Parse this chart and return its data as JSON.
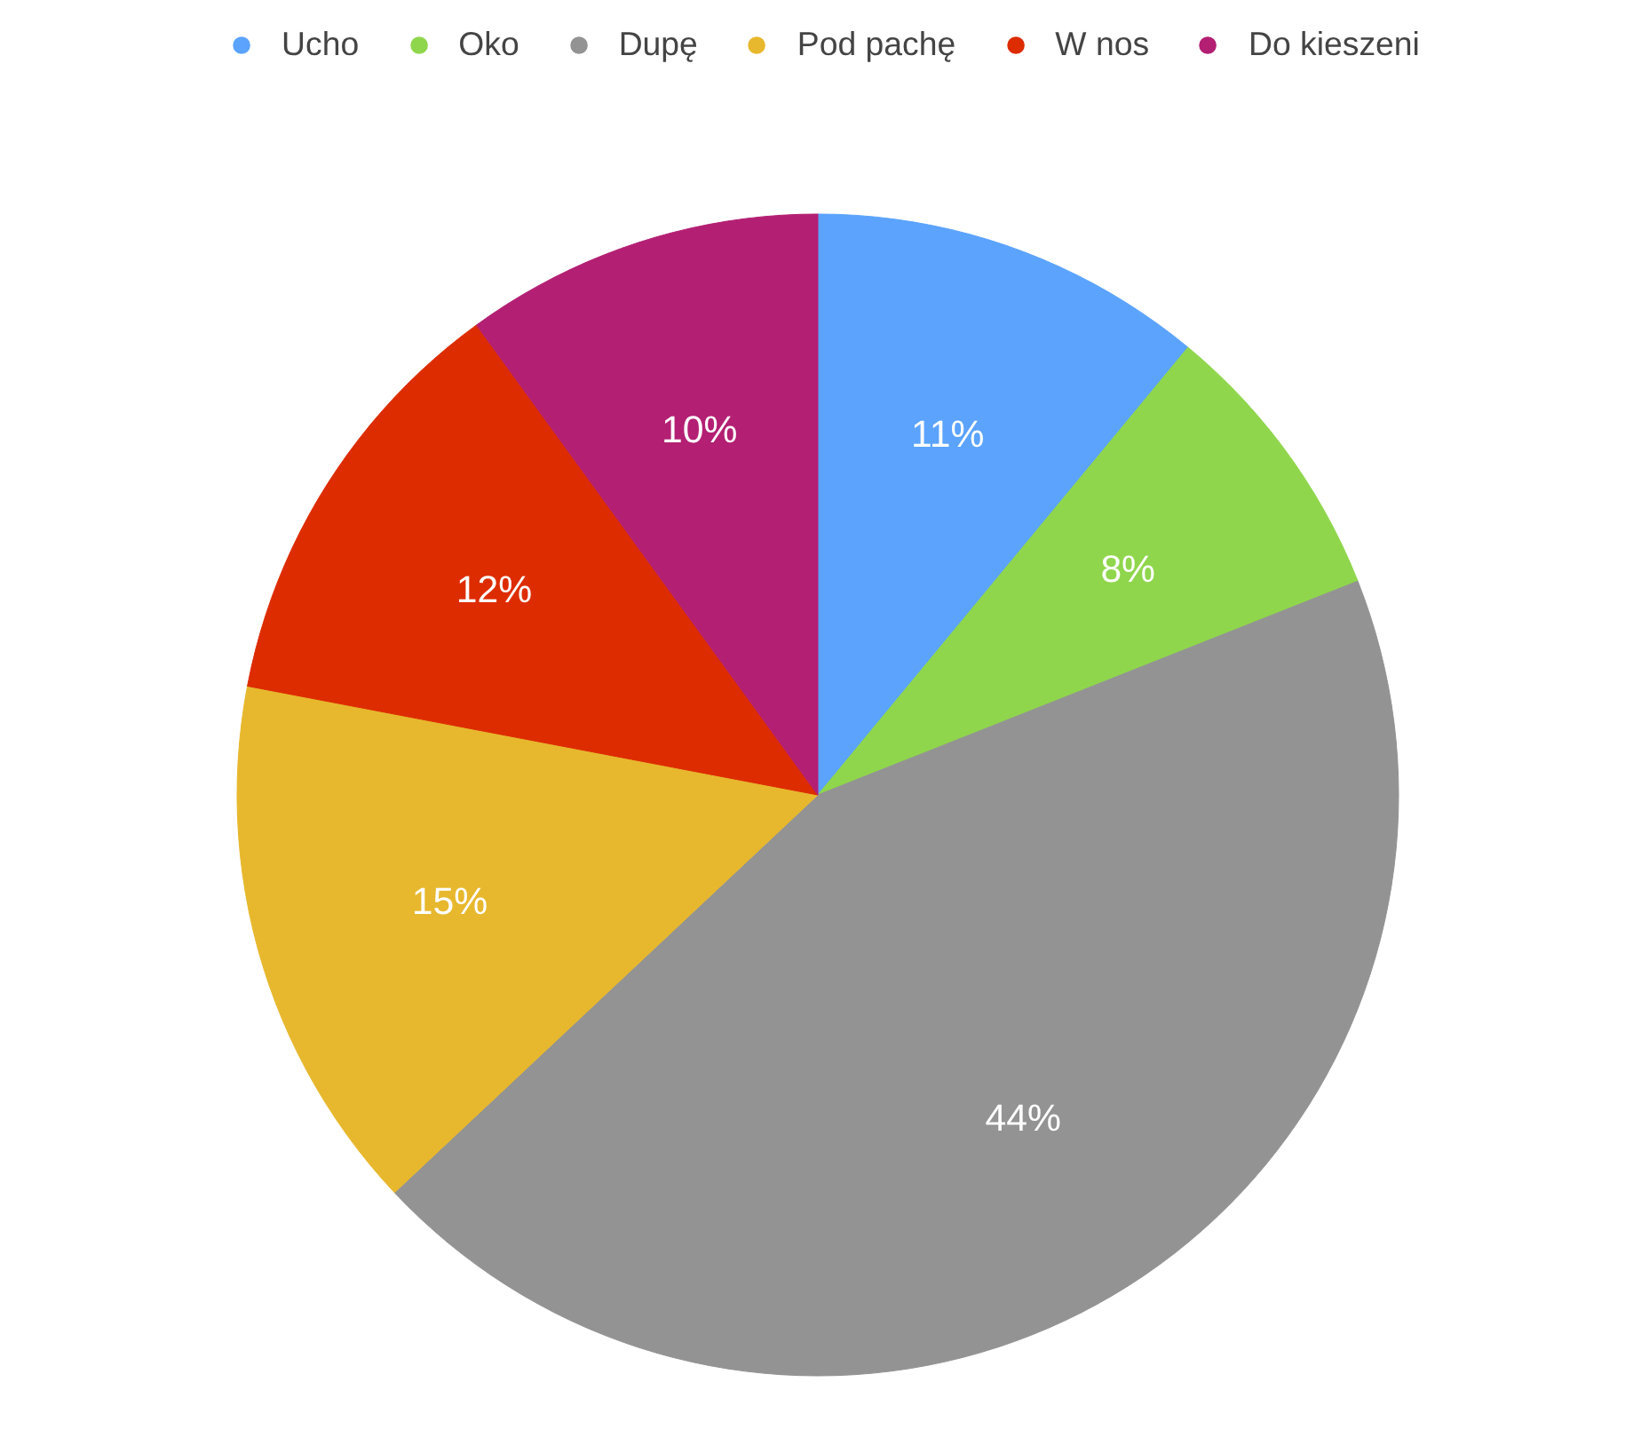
{
  "chart_data": {
    "type": "pie",
    "categories": [
      "Ucho",
      "Oko",
      "Dupę",
      "Pod pachę",
      "W nos",
      "Do kieszeni"
    ],
    "values": [
      11,
      8,
      44,
      15,
      12,
      10
    ],
    "colors": [
      "#5ba3fc",
      "#8fd64c",
      "#939393",
      "#e7b82d",
      "#dd2c00",
      "#b31f73"
    ],
    "value_labels": [
      "11%",
      "8%",
      "44%",
      "15%",
      "12%",
      "10%"
    ],
    "legend": "top"
  }
}
